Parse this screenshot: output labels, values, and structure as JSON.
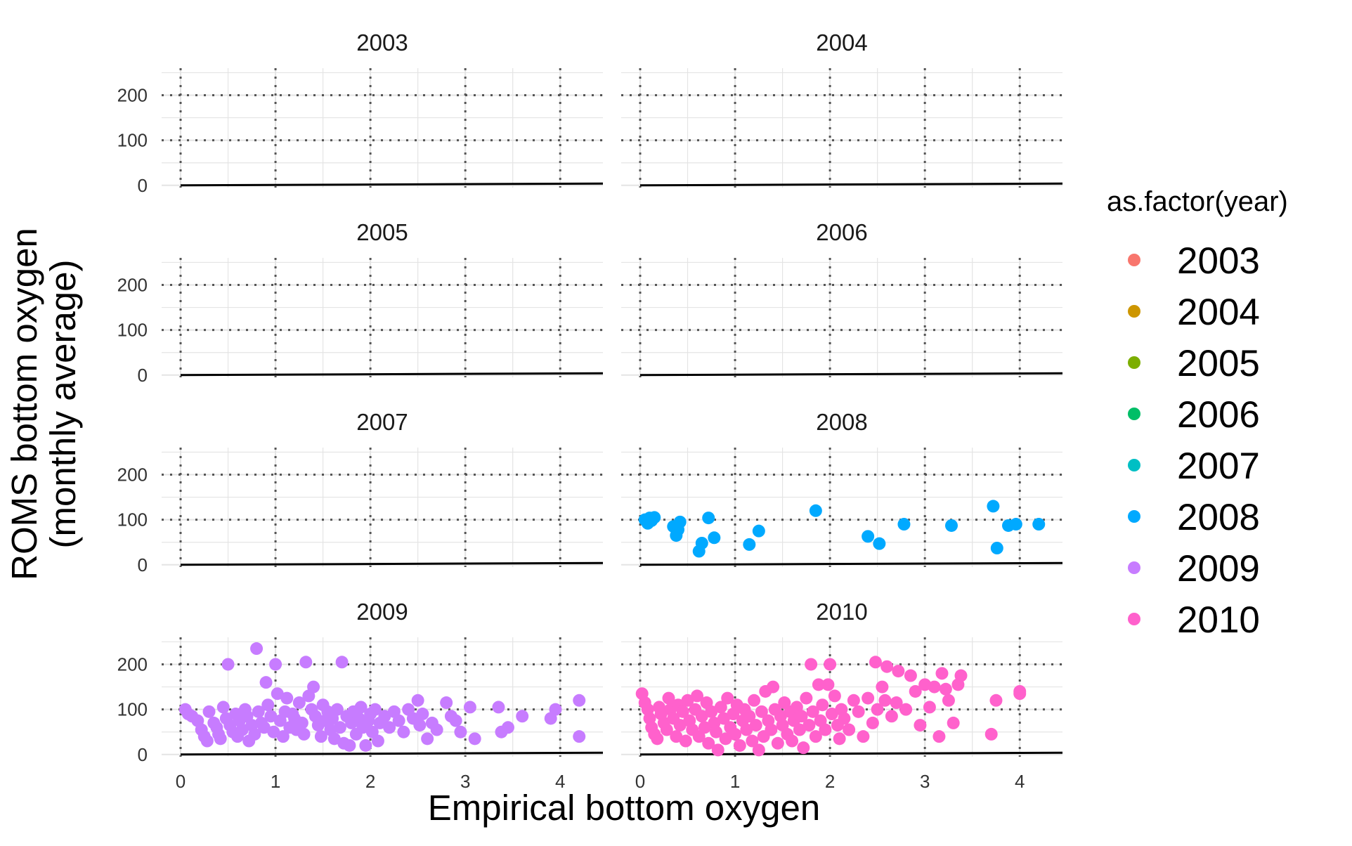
{
  "chart_data": {
    "type": "scatter",
    "facet_by": "year",
    "panels": [
      "2003",
      "2004",
      "2005",
      "2006",
      "2007",
      "2008",
      "2009",
      "2010"
    ],
    "xlabel": "Empirical bottom oxygen",
    "ylabel_lines": [
      "ROMS bottom oxygen",
      "(monthly average)"
    ],
    "x_ticks": [
      0,
      1,
      2,
      3,
      4
    ],
    "y_ticks": [
      0,
      100,
      200
    ],
    "xlim": [
      -0.2,
      4.45
    ],
    "ylim": [
      -5,
      260
    ],
    "reference_lines": {
      "vertical_x": [
        0,
        1,
        2,
        3,
        4
      ],
      "horizontal_y": [
        100,
        200
      ],
      "style": "dotted"
    },
    "fit_line": {
      "x": [
        0,
        4.45
      ],
      "y": [
        0,
        4
      ]
    },
    "grid": true,
    "legend": {
      "title": "as.factor(year)",
      "position": "right",
      "entries": [
        {
          "label": "2003",
          "color": "#F8766D"
        },
        {
          "label": "2004",
          "color": "#CD9600"
        },
        {
          "label": "2005",
          "color": "#7CAE00"
        },
        {
          "label": "2006",
          "color": "#00BE67"
        },
        {
          "label": "2007",
          "color": "#00BFC4"
        },
        {
          "label": "2008",
          "color": "#00A9FF"
        },
        {
          "label": "2009",
          "color": "#C77CFF"
        },
        {
          "label": "2010",
          "color": "#FF61CC"
        }
      ]
    },
    "series": [
      {
        "year": "2003",
        "points": []
      },
      {
        "year": "2004",
        "points": []
      },
      {
        "year": "2005",
        "points": []
      },
      {
        "year": "2006",
        "points": []
      },
      {
        "year": "2007",
        "points": []
      },
      {
        "year": "2008",
        "points": [
          [
            0.05,
            100
          ],
          [
            0.08,
            92
          ],
          [
            0.1,
            104
          ],
          [
            0.15,
            105
          ],
          [
            0.12,
            98
          ],
          [
            0.35,
            85
          ],
          [
            0.4,
            78
          ],
          [
            0.42,
            95
          ],
          [
            0.38,
            65
          ],
          [
            0.62,
            30
          ],
          [
            0.65,
            48
          ],
          [
            0.72,
            104
          ],
          [
            0.78,
            60
          ],
          [
            1.15,
            45
          ],
          [
            1.25,
            75
          ],
          [
            1.85,
            120
          ],
          [
            2.4,
            63
          ],
          [
            2.52,
            47
          ],
          [
            2.78,
            90
          ],
          [
            3.28,
            87
          ],
          [
            3.72,
            130
          ],
          [
            3.76,
            37
          ],
          [
            3.88,
            87
          ],
          [
            3.96,
            90
          ],
          [
            4.2,
            90
          ]
        ]
      },
      {
        "year": "2009",
        "points": [
          [
            0.05,
            100
          ],
          [
            0.08,
            90
          ],
          [
            0.12,
            85
          ],
          [
            0.18,
            75
          ],
          [
            0.22,
            55
          ],
          [
            0.25,
            40
          ],
          [
            0.28,
            30
          ],
          [
            0.3,
            95
          ],
          [
            0.35,
            70
          ],
          [
            0.38,
            60
          ],
          [
            0.4,
            45
          ],
          [
            0.42,
            35
          ],
          [
            0.45,
            105
          ],
          [
            0.48,
            80
          ],
          [
            0.5,
            200
          ],
          [
            0.52,
            65
          ],
          [
            0.55,
            50
          ],
          [
            0.58,
            90
          ],
          [
            0.6,
            40
          ],
          [
            0.62,
            75
          ],
          [
            0.65,
            55
          ],
          [
            0.68,
            100
          ],
          [
            0.7,
            85
          ],
          [
            0.72,
            30
          ],
          [
            0.75,
            65
          ],
          [
            0.78,
            45
          ],
          [
            0.8,
            235
          ],
          [
            0.82,
            95
          ],
          [
            0.85,
            70
          ],
          [
            0.88,
            60
          ],
          [
            0.9,
            160
          ],
          [
            0.92,
            110
          ],
          [
            0.95,
            85
          ],
          [
            0.98,
            50
          ],
          [
            1.0,
            200
          ],
          [
            1.02,
            135
          ],
          [
            1.05,
            75
          ],
          [
            1.08,
            40
          ],
          [
            1.1,
            95
          ],
          [
            1.12,
            125
          ],
          [
            1.15,
            60
          ],
          [
            1.18,
            90
          ],
          [
            1.2,
            80
          ],
          [
            1.22,
            55
          ],
          [
            1.25,
            115
          ],
          [
            1.28,
            70
          ],
          [
            1.3,
            45
          ],
          [
            1.32,
            205
          ],
          [
            1.35,
            130
          ],
          [
            1.38,
            100
          ],
          [
            1.4,
            150
          ],
          [
            1.42,
            85
          ],
          [
            1.45,
            65
          ],
          [
            1.48,
            40
          ],
          [
            1.5,
            110
          ],
          [
            1.52,
            75
          ],
          [
            1.55,
            95
          ],
          [
            1.58,
            55
          ],
          [
            1.6,
            80
          ],
          [
            1.62,
            35
          ],
          [
            1.65,
            100
          ],
          [
            1.68,
            60
          ],
          [
            1.7,
            205
          ],
          [
            1.72,
            25
          ],
          [
            1.75,
            85
          ],
          [
            1.78,
            20
          ],
          [
            1.8,
            70
          ],
          [
            1.82,
            95
          ],
          [
            1.85,
            45
          ],
          [
            1.88,
            80
          ],
          [
            1.9,
            105
          ],
          [
            1.92,
            60
          ],
          [
            1.95,
            20
          ],
          [
            1.98,
            75
          ],
          [
            2.0,
            90
          ],
          [
            2.02,
            50
          ],
          [
            2.05,
            100
          ],
          [
            2.08,
            30
          ],
          [
            2.1,
            70
          ],
          [
            2.15,
            85
          ],
          [
            2.2,
            60
          ],
          [
            2.25,
            95
          ],
          [
            2.3,
            75
          ],
          [
            2.35,
            50
          ],
          [
            2.4,
            100
          ],
          [
            2.45,
            80
          ],
          [
            2.5,
            120
          ],
          [
            2.52,
            65
          ],
          [
            2.55,
            90
          ],
          [
            2.6,
            35
          ],
          [
            2.65,
            70
          ],
          [
            2.7,
            55
          ],
          [
            2.8,
            115
          ],
          [
            2.85,
            85
          ],
          [
            2.9,
            75
          ],
          [
            2.95,
            50
          ],
          [
            3.05,
            105
          ],
          [
            3.1,
            35
          ],
          [
            3.35,
            105
          ],
          [
            3.38,
            50
          ],
          [
            3.45,
            60
          ],
          [
            3.6,
            85
          ],
          [
            3.9,
            80
          ],
          [
            3.95,
            100
          ],
          [
            4.2,
            120
          ],
          [
            4.2,
            40
          ]
        ]
      },
      {
        "year": "2010",
        "points": [
          [
            0.02,
            135
          ],
          [
            0.05,
            115
          ],
          [
            0.08,
            100
          ],
          [
            0.1,
            80
          ],
          [
            0.12,
            60
          ],
          [
            0.15,
            45
          ],
          [
            0.18,
            35
          ],
          [
            0.2,
            105
          ],
          [
            0.22,
            90
          ],
          [
            0.25,
            70
          ],
          [
            0.28,
            55
          ],
          [
            0.3,
            125
          ],
          [
            0.32,
            100
          ],
          [
            0.35,
            80
          ],
          [
            0.38,
            40
          ],
          [
            0.4,
            110
          ],
          [
            0.42,
            65
          ],
          [
            0.45,
            95
          ],
          [
            0.48,
            30
          ],
          [
            0.5,
            120
          ],
          [
            0.52,
            75
          ],
          [
            0.55,
            55
          ],
          [
            0.58,
            100
          ],
          [
            0.6,
            130
          ],
          [
            0.62,
            40
          ],
          [
            0.65,
            85
          ],
          [
            0.68,
            60
          ],
          [
            0.7,
            115
          ],
          [
            0.72,
            25
          ],
          [
            0.75,
            95
          ],
          [
            0.78,
            70
          ],
          [
            0.8,
            50
          ],
          [
            0.82,
            10
          ],
          [
            0.85,
            105
          ],
          [
            0.88,
            80
          ],
          [
            0.9,
            35
          ],
          [
            0.92,
            125
          ],
          [
            0.95,
            60
          ],
          [
            0.98,
            90
          ],
          [
            1.0,
            45
          ],
          [
            1.02,
            110
          ],
          [
            1.05,
            20
          ],
          [
            1.08,
            75
          ],
          [
            1.1,
            100
          ],
          [
            1.12,
            55
          ],
          [
            1.15,
            85
          ],
          [
            1.18,
            30
          ],
          [
            1.2,
            120
          ],
          [
            1.22,
            65
          ],
          [
            1.25,
            10
          ],
          [
            1.28,
            95
          ],
          [
            1.3,
            40
          ],
          [
            1.32,
            140
          ],
          [
            1.35,
            75
          ],
          [
            1.38,
            55
          ],
          [
            1.4,
            150
          ],
          [
            1.42,
            100
          ],
          [
            1.45,
            25
          ],
          [
            1.48,
            85
          ],
          [
            1.5,
            65
          ],
          [
            1.52,
            115
          ],
          [
            1.55,
            45
          ],
          [
            1.58,
            95
          ],
          [
            1.6,
            30
          ],
          [
            1.62,
            75
          ],
          [
            1.65,
            105
          ],
          [
            1.68,
            55
          ],
          [
            1.7,
            85
          ],
          [
            1.72,
            15
          ],
          [
            1.75,
            125
          ],
          [
            1.78,
            65
          ],
          [
            1.8,
            200
          ],
          [
            1.82,
            95
          ],
          [
            1.85,
            40
          ],
          [
            1.88,
            155
          ],
          [
            1.9,
            75
          ],
          [
            1.92,
            110
          ],
          [
            1.95,
            55
          ],
          [
            1.98,
            155
          ],
          [
            2.0,
            200
          ],
          [
            2.02,
            90
          ],
          [
            2.05,
            130
          ],
          [
            2.08,
            65
          ],
          [
            2.1,
            35
          ],
          [
            2.12,
            100
          ],
          [
            2.15,
            80
          ],
          [
            2.2,
            55
          ],
          [
            2.25,
            120
          ],
          [
            2.3,
            95
          ],
          [
            2.35,
            40
          ],
          [
            2.4,
            125
          ],
          [
            2.45,
            70
          ],
          [
            2.48,
            205
          ],
          [
            2.5,
            100
          ],
          [
            2.55,
            150
          ],
          [
            2.58,
            120
          ],
          [
            2.6,
            195
          ],
          [
            2.65,
            85
          ],
          [
            2.7,
            115
          ],
          [
            2.72,
            185
          ],
          [
            2.8,
            100
          ],
          [
            2.85,
            175
          ],
          [
            2.9,
            140
          ],
          [
            2.95,
            65
          ],
          [
            3.0,
            155
          ],
          [
            3.05,
            105
          ],
          [
            3.1,
            150
          ],
          [
            3.15,
            40
          ],
          [
            3.18,
            180
          ],
          [
            3.22,
            145
          ],
          [
            3.25,
            120
          ],
          [
            3.3,
            70
          ],
          [
            3.35,
            155
          ],
          [
            3.38,
            175
          ],
          [
            3.7,
            45
          ],
          [
            3.75,
            120
          ],
          [
            4.0,
            140
          ],
          [
            4.0,
            135
          ]
        ]
      }
    ]
  }
}
